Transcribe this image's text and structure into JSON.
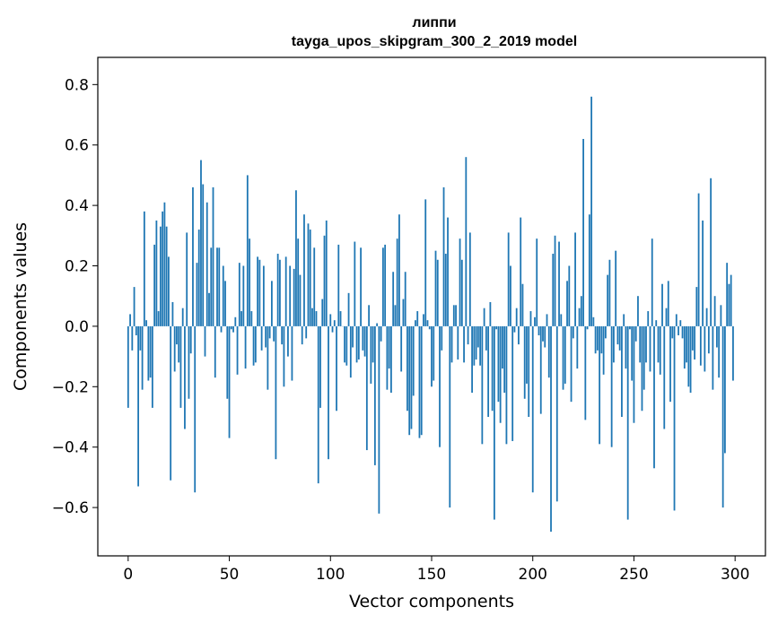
{
  "chart_data": {
    "type": "bar",
    "title": "липпи",
    "subtitle": "tayga_upos_skipgram_300_2_2019 model",
    "xlabel": "Vector components",
    "ylabel": "Components values",
    "xlim": [
      -15,
      315
    ],
    "ylim": [
      -0.76,
      0.89
    ],
    "xticks": [
      0,
      50,
      100,
      150,
      200,
      250,
      300
    ],
    "xtick_labels": [
      "0",
      "50",
      "100",
      "150",
      "200",
      "250",
      "300"
    ],
    "yticks": [
      -0.6,
      -0.4,
      -0.2,
      0.0,
      0.2,
      0.4,
      0.6,
      0.8
    ],
    "ytick_labels": [
      "−0.6",
      "−0.4",
      "−0.2",
      "0.0",
      "0.2",
      "0.4",
      "0.6",
      "0.8"
    ],
    "grid": false,
    "bar_color": "#1f77b4",
    "x": "0..299",
    "values": [
      -0.27,
      0.04,
      -0.08,
      0.13,
      -0.03,
      -0.53,
      -0.08,
      -0.21,
      0.38,
      0.02,
      -0.18,
      -0.17,
      -0.27,
      0.27,
      0.35,
      0.05,
      0.33,
      0.38,
      0.41,
      0.33,
      0.23,
      -0.51,
      0.08,
      -0.15,
      -0.06,
      -0.12,
      -0.27,
      0.06,
      -0.34,
      0.31,
      -0.24,
      -0.09,
      0.46,
      -0.55,
      0.21,
      0.32,
      0.55,
      0.47,
      -0.1,
      0.41,
      0.11,
      0.26,
      0.46,
      -0.17,
      0.26,
      0.26,
      -0.02,
      0.2,
      0.15,
      -0.24,
      -0.37,
      -0.01,
      -0.02,
      0.03,
      -0.16,
      0.21,
      0.05,
      0.2,
      -0.14,
      0.5,
      0.29,
      0.05,
      -0.13,
      -0.12,
      0.23,
      0.22,
      -0.08,
      0.2,
      -0.07,
      -0.21,
      -0.04,
      0.15,
      -0.05,
      -0.44,
      0.24,
      0.22,
      -0.06,
      -0.2,
      0.23,
      -0.1,
      0.2,
      -0.18,
      0.19,
      0.45,
      0.29,
      0.17,
      -0.06,
      0.37,
      -0.04,
      0.34,
      0.32,
      0.06,
      0.26,
      0.05,
      -0.52,
      -0.27,
      0.09,
      0.3,
      0.35,
      -0.44,
      0.04,
      -0.02,
      0.02,
      -0.28,
      0.27,
      0.05,
      0.0,
      -0.12,
      -0.13,
      0.11,
      -0.17,
      -0.07,
      0.28,
      -0.12,
      -0.11,
      0.26,
      -0.08,
      -0.1,
      -0.41,
      0.07,
      -0.19,
      -0.12,
      -0.46,
      0.01,
      -0.62,
      -0.05,
      0.26,
      0.27,
      -0.21,
      -0.14,
      -0.22,
      0.18,
      0.07,
      0.29,
      0.37,
      -0.15,
      0.09,
      0.18,
      -0.28,
      -0.36,
      -0.34,
      -0.23,
      0.02,
      0.05,
      -0.37,
      -0.36,
      0.04,
      0.42,
      0.02,
      -0.01,
      -0.2,
      -0.18,
      0.25,
      0.22,
      -0.4,
      -0.08,
      0.46,
      0.24,
      0.36,
      -0.6,
      -0.12,
      0.07,
      0.07,
      -0.11,
      0.29,
      0.22,
      -0.12,
      0.56,
      -0.06,
      0.31,
      -0.22,
      -0.13,
      -0.11,
      -0.07,
      -0.13,
      -0.39,
      0.06,
      -0.08,
      -0.3,
      0.08,
      -0.28,
      -0.64,
      -0.01,
      -0.25,
      -0.32,
      -0.14,
      -0.22,
      -0.39,
      0.31,
      0.2,
      -0.38,
      -0.02,
      0.06,
      -0.06,
      0.36,
      0.14,
      -0.24,
      -0.19,
      -0.3,
      0.05,
      -0.55,
      0.03,
      0.29,
      -0.03,
      -0.29,
      -0.05,
      -0.07,
      0.04,
      -0.17,
      -0.68,
      0.24,
      0.3,
      -0.58,
      0.28,
      0.04,
      -0.21,
      -0.19,
      0.15,
      0.2,
      -0.25,
      -0.04,
      0.31,
      -0.14,
      0.06,
      0.1,
      0.62,
      -0.31,
      -0.01,
      0.37,
      0.76,
      0.03,
      -0.09,
      -0.08,
      -0.39,
      -0.09,
      -0.16,
      -0.04,
      0.17,
      0.22,
      -0.4,
      -0.12,
      0.25,
      -0.06,
      -0.08,
      -0.3,
      0.04,
      -0.14,
      -0.64,
      -0.01,
      -0.18,
      -0.32,
      -0.05,
      0.1,
      -0.12,
      -0.28,
      -0.21,
      -0.12,
      0.05,
      -0.15,
      0.29,
      -0.47,
      0.02,
      -0.12,
      -0.16,
      0.14,
      -0.34,
      0.06,
      0.15,
      -0.25,
      -0.04,
      -0.61,
      0.04,
      -0.03,
      0.02,
      -0.04,
      -0.14,
      -0.12,
      -0.2,
      -0.22,
      -0.08,
      -0.11,
      0.13,
      0.44,
      -0.13,
      0.35,
      -0.15,
      0.06,
      -0.09,
      0.49,
      -0.21,
      0.1,
      -0.07,
      -0.17,
      0.07,
      -0.6,
      -0.42,
      0.21,
      0.14,
      0.17,
      -0.18
    ]
  }
}
